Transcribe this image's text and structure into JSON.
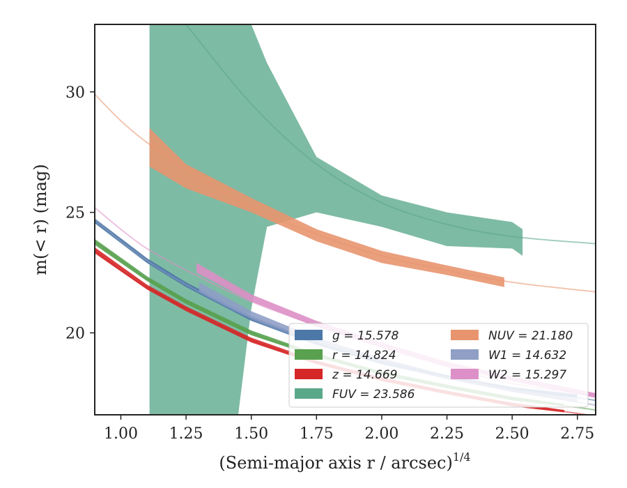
{
  "chart_data": {
    "type": "area",
    "xlabel": "(Semi-major axis r / arcsec)",
    "xlabel_exponent": "1/4",
    "ylabel": "m(< r) (mag)",
    "xlim": [
      0.9,
      2.82
    ],
    "ylim": [
      32.8,
      16.6
    ],
    "y_inverted": true,
    "x_ticks": [
      1.0,
      1.25,
      1.5,
      1.75,
      2.0,
      2.25,
      2.5,
      2.75
    ],
    "x_tick_labels": [
      "1.00",
      "1.25",
      "1.50",
      "1.75",
      "2.00",
      "2.25",
      "2.50",
      "2.75"
    ],
    "y_ticks": [
      20,
      25,
      30
    ],
    "y_tick_labels": [
      "20",
      "25",
      "30"
    ],
    "legend_position": "lower-right",
    "legend_columns": 2,
    "grid": false,
    "series": [
      {
        "name": "g = 15.578",
        "color": "#4c78a8",
        "model_x": [
          0.9,
          1.0,
          1.1,
          1.25,
          1.5,
          1.75,
          2.0,
          2.25,
          2.5,
          2.82
        ],
        "model_y": [
          24.7,
          23.8,
          23.0,
          22.0,
          20.6,
          19.6,
          18.8,
          18.2,
          17.7,
          17.2
        ],
        "band_x": [
          0.9,
          1.1,
          1.25,
          1.5,
          1.75,
          2.0,
          2.25,
          2.5,
          2.75
        ],
        "band_upper": [
          24.55,
          22.9,
          21.9,
          20.5,
          19.5,
          18.7,
          18.1,
          17.6,
          17.3
        ],
        "band_lower": [
          24.75,
          23.1,
          22.1,
          20.7,
          19.65,
          18.85,
          18.25,
          17.75,
          17.45
        ]
      },
      {
        "name": "r = 14.824",
        "color": "#59a14f",
        "model_x": [
          0.9,
          1.0,
          1.1,
          1.25,
          1.5,
          1.75,
          2.0,
          2.25,
          2.5,
          2.82
        ],
        "model_y": [
          23.8,
          23.0,
          22.25,
          21.3,
          20.0,
          19.1,
          18.35,
          17.8,
          17.3,
          16.8
        ],
        "band_x": [
          0.9,
          1.1,
          1.25,
          1.5,
          1.75,
          2.0,
          2.25,
          2.5,
          2.7
        ],
        "band_upper": [
          23.65,
          22.15,
          21.2,
          19.9,
          19.0,
          18.25,
          17.7,
          17.2,
          16.95
        ],
        "band_lower": [
          23.9,
          22.35,
          21.4,
          20.1,
          19.15,
          18.4,
          17.85,
          17.35,
          17.05
        ]
      },
      {
        "name": "z = 14.669",
        "color": "#d62728",
        "model_x": [
          0.9,
          1.0,
          1.1,
          1.25,
          1.5,
          1.75,
          2.0,
          2.25,
          2.5,
          2.82
        ],
        "model_y": [
          23.4,
          22.6,
          21.9,
          21.0,
          19.7,
          18.8,
          18.1,
          17.55,
          17.05,
          16.55
        ],
        "band_x": [
          0.9,
          1.1,
          1.25,
          1.5,
          1.75,
          2.0,
          2.25,
          2.5,
          2.7
        ],
        "band_upper": [
          23.3,
          21.8,
          20.9,
          19.6,
          18.7,
          18.0,
          17.45,
          16.95,
          16.7
        ],
        "band_lower": [
          23.55,
          22.0,
          21.1,
          19.8,
          18.85,
          18.15,
          17.6,
          17.1,
          16.8
        ]
      },
      {
        "name": "FUV = 23.586",
        "color": "#5aa88a",
        "model_x": [
          1.25,
          1.5,
          1.75,
          2.0,
          2.25,
          2.5,
          2.82
        ],
        "model_y": [
          32.8,
          29.5,
          27.0,
          25.4,
          24.5,
          24.0,
          23.7
        ],
        "band_x": [
          1.11,
          1.45,
          1.5,
          1.56,
          1.75,
          2.0,
          2.25,
          2.5,
          2.54
        ],
        "band_upper": [
          16.6,
          16.6,
          21.0,
          24.4,
          25.0,
          24.4,
          23.6,
          23.5,
          23.2
        ],
        "band_lower": [
          32.8,
          32.8,
          32.8,
          31.2,
          27.3,
          25.7,
          25.0,
          24.6,
          24.3
        ]
      },
      {
        "name": "NUV = 21.180",
        "color": "#e8956f",
        "model_x": [
          0.9,
          1.0,
          1.1,
          1.25,
          1.5,
          1.75,
          2.0,
          2.25,
          2.5,
          2.82
        ],
        "model_y": [
          29.9,
          28.8,
          27.9,
          26.8,
          25.2,
          24.1,
          23.2,
          22.6,
          22.1,
          21.7
        ],
        "band_x": [
          1.11,
          1.25,
          1.5,
          1.75,
          2.0,
          2.25,
          2.47
        ],
        "band_upper": [
          26.9,
          26.0,
          25.0,
          23.8,
          22.9,
          22.4,
          21.9
        ],
        "band_lower": [
          28.5,
          27.0,
          25.6,
          24.3,
          23.4,
          22.8,
          22.3
        ]
      },
      {
        "name": "W1 = 14.632",
        "color": "#8f9fc6",
        "model_x": [
          0.9,
          1.0,
          1.1,
          1.25,
          1.5,
          1.75,
          2.0,
          2.25,
          2.5,
          2.82
        ],
        "model_y": [
          24.7,
          23.8,
          23.0,
          22.0,
          20.6,
          19.6,
          18.8,
          18.1,
          17.6,
          17.0
        ],
        "band_x": [
          1.3,
          1.5,
          1.75,
          2.0,
          2.25,
          2.5,
          2.75
        ],
        "band_upper": [
          21.7,
          20.6,
          19.6,
          18.75,
          18.1,
          17.55,
          17.1
        ],
        "band_lower": [
          22.1,
          20.9,
          19.8,
          18.95,
          18.25,
          17.7,
          17.25
        ]
      },
      {
        "name": "W2 = 15.297",
        "color": "#dd8fc7",
        "model_x": [
          0.9,
          1.0,
          1.1,
          1.25,
          1.5,
          1.75,
          2.0,
          2.25,
          2.5,
          2.82
        ],
        "model_y": [
          25.2,
          24.3,
          23.5,
          22.6,
          21.3,
          20.3,
          19.4,
          18.6,
          17.9,
          17.4
        ],
        "band_x": [
          1.29,
          1.5,
          1.75,
          2.0,
          2.25,
          2.5,
          2.82
        ],
        "band_upper": [
          22.5,
          21.3,
          20.25,
          19.4,
          18.6,
          18.0,
          17.3
        ],
        "band_lower": [
          22.9,
          21.6,
          20.5,
          19.6,
          18.8,
          18.2,
          17.5
        ]
      }
    ]
  }
}
